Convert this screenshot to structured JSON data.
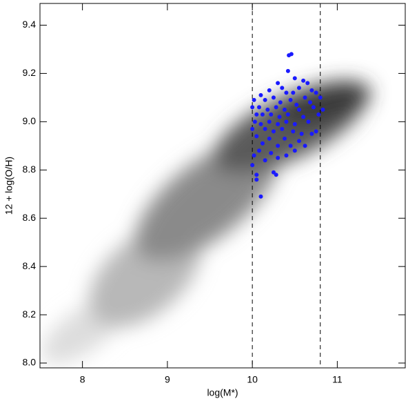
{
  "chart_data": {
    "type": "scatter",
    "x_label": "log(M*)",
    "y_label": "12 + log(O/H)",
    "xlim": [
      7.5,
      11.8
    ],
    "ylim": [
      7.98,
      9.49
    ],
    "xticks": [
      8,
      9,
      10,
      11
    ],
    "yticks": [
      {
        "value": 8,
        "label": "8.0"
      },
      8.2,
      8.4,
      8.6,
      8.8,
      {
        "value": 9,
        "label": "9.0"
      },
      9.2,
      9.4
    ],
    "vlines": [
      10,
      10.8
    ],
    "series": [
      {
        "color": "#1a1aff",
        "x": [
          10.43,
          10.46,
          10.42,
          10.3,
          10.5,
          10.6,
          10.65,
          10.35,
          10.2,
          10.55,
          10.7,
          10.75,
          10.1,
          10.4,
          10.48,
          10.62,
          10.8,
          10.02,
          10.15,
          10.25,
          10.33,
          10.45,
          10.52,
          10.68,
          10.0,
          10.08,
          10.18,
          10.28,
          10.38,
          10.55,
          10.72,
          10.05,
          10.12,
          10.22,
          10.32,
          10.42,
          10.6,
          10.78,
          10.03,
          10.1,
          10.2,
          10.3,
          10.4,
          10.5,
          10.66,
          10.0,
          10.15,
          10.25,
          10.35,
          10.48,
          10.58,
          10.75,
          10.05,
          10.2,
          10.38,
          10.55,
          10.12,
          10.3,
          10.45,
          10.62,
          10.08,
          10.22,
          10.4,
          10.02,
          10.15,
          10.3,
          10.0,
          10.25,
          10.28,
          10.05,
          10.05,
          10.1,
          10.5,
          10.7,
          10.83
        ],
        "y": [
          9.275,
          9.28,
          9.21,
          9.16,
          9.18,
          9.17,
          9.16,
          9.14,
          9.13,
          9.14,
          9.13,
          9.12,
          9.11,
          9.12,
          9.12,
          9.1,
          9.1,
          9.09,
          9.09,
          9.1,
          9.08,
          9.09,
          9.07,
          9.08,
          9.06,
          9.06,
          9.05,
          9.06,
          9.05,
          9.05,
          9.06,
          9.03,
          9.03,
          9.03,
          9.02,
          9.03,
          9.02,
          9.03,
          9.0,
          8.99,
          9.0,
          8.99,
          9.0,
          8.99,
          9.0,
          8.97,
          8.97,
          8.96,
          8.97,
          8.96,
          8.95,
          8.96,
          8.94,
          8.93,
          8.93,
          8.92,
          8.91,
          8.9,
          8.9,
          8.9,
          8.88,
          8.87,
          8.86,
          8.86,
          8.84,
          8.85,
          8.82,
          8.79,
          8.78,
          8.78,
          8.76,
          8.69,
          8.88,
          8.95,
          9.05
        ]
      }
    ]
  }
}
